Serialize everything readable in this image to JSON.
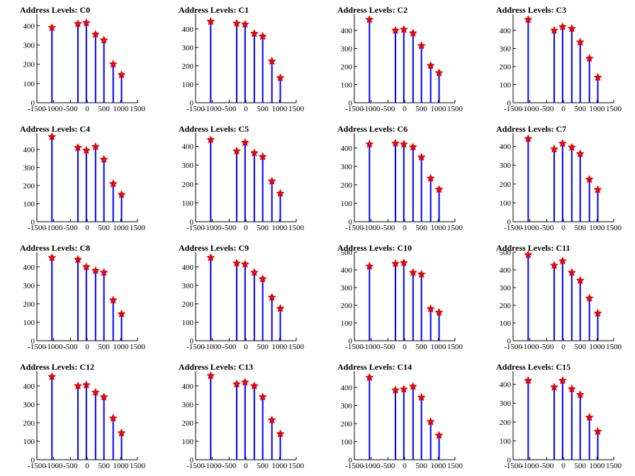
{
  "chart_data": [
    {
      "title": "Address Levels: C0",
      "type": "bar",
      "ylim": [
        0,
        460
      ],
      "yticks": [
        0,
        100,
        200,
        300,
        400
      ],
      "xlim": [
        -1500,
        1500
      ],
      "xtick_labels": [
        "-1500",
        "-1000",
        "-500",
        "0",
        "500",
        "1000",
        "1500"
      ],
      "markers": {
        "x": [
          -1050,
          -275,
          -25,
          250,
          500,
          775,
          1025
        ],
        "y": [
          390,
          410,
          415,
          355,
          325,
          200,
          145
        ]
      },
      "bars": {
        "x": [
          -1050,
          -275,
          -25,
          250,
          500,
          775,
          1025
        ],
        "y": [
          390,
          410,
          415,
          355,
          325,
          200,
          145
        ]
      }
    },
    {
      "title": "Address Levels: C1",
      "type": "bar",
      "ylim": [
        0,
        480
      ],
      "yticks": [
        0,
        100,
        200,
        300,
        400
      ],
      "xlim": [
        -1500,
        1500
      ],
      "xtick_labels": [
        "-1500",
        "-1000",
        "-500",
        "0",
        "500",
        "1000",
        "1500"
      ],
      "markers": {
        "x": [
          -1050,
          -275,
          -25,
          250,
          500,
          775,
          1025
        ],
        "y": [
          440,
          430,
          425,
          375,
          360,
          225,
          135
        ]
      },
      "bars": {
        "x": [
          -1050,
          -275,
          -25,
          250,
          500,
          775,
          1025
        ],
        "y": [
          440,
          430,
          425,
          375,
          360,
          225,
          135
        ]
      }
    },
    {
      "title": "Address Levels: C2",
      "type": "bar",
      "ylim": [
        0,
        490
      ],
      "yticks": [
        0,
        100,
        200,
        300,
        400
      ],
      "xlim": [
        -1500,
        1500
      ],
      "xtick_labels": [
        "-1500",
        "-1000",
        "-500",
        "0",
        "500",
        "1000",
        "1500"
      ],
      "markers": {
        "x": [
          -1050,
          -275,
          -25,
          250,
          500,
          775,
          1025
        ],
        "y": [
          460,
          400,
          405,
          385,
          315,
          205,
          165
        ]
      },
      "bars": {
        "x": [
          -1050,
          -275,
          -25,
          250,
          500,
          775,
          1025
        ],
        "y": [
          460,
          400,
          405,
          385,
          315,
          205,
          165
        ]
      }
    },
    {
      "title": "Address Levels: C3",
      "type": "bar",
      "ylim": [
        0,
        490
      ],
      "yticks": [
        0,
        100,
        200,
        300,
        400
      ],
      "xlim": [
        -1500,
        1500
      ],
      "xtick_labels": [
        "-1500",
        "-1000",
        "-500",
        "0",
        "500",
        "1000",
        "1500"
      ],
      "markers": {
        "x": [
          -1050,
          -275,
          -25,
          250,
          500,
          775,
          1025
        ],
        "y": [
          460,
          400,
          420,
          410,
          335,
          245,
          140
        ]
      },
      "bars": {
        "x": [
          -1050,
          -275,
          -25,
          250,
          500,
          775,
          1025
        ],
        "y": [
          460,
          400,
          420,
          410,
          335,
          245,
          140
        ]
      }
    },
    {
      "title": "Address Levels: C4",
      "type": "bar",
      "ylim": [
        0,
        490
      ],
      "yticks": [
        0,
        100,
        200,
        300,
        400
      ],
      "xlim": [
        -1500,
        1500
      ],
      "xtick_labels": [
        "-1500",
        "-1000",
        "-500",
        "0",
        "500",
        "1000",
        "1500"
      ],
      "markers": {
        "x": [
          -1050,
          -275,
          -25,
          250,
          500,
          775,
          1025
        ],
        "y": [
          470,
          410,
          395,
          415,
          345,
          210,
          150
        ]
      },
      "bars": {
        "x": [
          -1050,
          -275,
          -25,
          250,
          500,
          775,
          1025
        ],
        "y": [
          470,
          410,
          395,
          415,
          345,
          210,
          150
        ]
      }
    },
    {
      "title": "Address Levels: C5",
      "type": "bar",
      "ylim": [
        0,
        470
      ],
      "yticks": [
        0,
        100,
        200,
        300,
        400
      ],
      "xlim": [
        -1500,
        1500
      ],
      "xtick_labels": [
        "-1500",
        "-1000",
        "-500",
        "0",
        "500",
        "1000",
        "1500"
      ],
      "markers": {
        "x": [
          -1050,
          -275,
          -25,
          250,
          500,
          775,
          1025
        ],
        "y": [
          435,
          375,
          420,
          365,
          345,
          215,
          150
        ]
      },
      "bars": {
        "x": [
          -1050,
          -275,
          -25,
          250,
          500,
          775,
          1025
        ],
        "y": [
          435,
          375,
          420,
          365,
          345,
          215,
          150
        ]
      }
    },
    {
      "title": "Address Levels: C6",
      "type": "bar",
      "ylim": [
        0,
        480
      ],
      "yticks": [
        0,
        100,
        200,
        300,
        400
      ],
      "xlim": [
        -1500,
        1500
      ],
      "xtick_labels": [
        "-1500",
        "-1000",
        "-500",
        "0",
        "500",
        "1000",
        "1500"
      ],
      "markers": {
        "x": [
          -1050,
          -275,
          -25,
          250,
          500,
          775,
          1025
        ],
        "y": [
          420,
          425,
          420,
          405,
          350,
          235,
          175
        ]
      },
      "bars": {
        "x": [
          -1050,
          -275,
          -25,
          250,
          500,
          775,
          1025
        ],
        "y": [
          420,
          425,
          420,
          405,
          350,
          235,
          175
        ]
      }
    },
    {
      "title": "Address Levels: C7",
      "type": "bar",
      "ylim": [
        0,
        470
      ],
      "yticks": [
        0,
        100,
        200,
        300,
        400
      ],
      "xlim": [
        -1500,
        1500
      ],
      "xtick_labels": [
        "-1500",
        "-1000",
        "-500",
        "0",
        "500",
        "1000",
        "1500"
      ],
      "markers": {
        "x": [
          -1050,
          -275,
          -25,
          250,
          500,
          775,
          1025
        ],
        "y": [
          440,
          385,
          415,
          395,
          360,
          225,
          170
        ]
      },
      "bars": {
        "x": [
          -1050,
          -275,
          -25,
          250,
          500,
          775,
          1025
        ],
        "y": [
          440,
          385,
          415,
          395,
          360,
          225,
          170
        ]
      }
    },
    {
      "title": "Address Levels: C8",
      "type": "bar",
      "ylim": [
        0,
        480
      ],
      "yticks": [
        0,
        100,
        200,
        300,
        400
      ],
      "xlim": [
        -1500,
        1500
      ],
      "xtick_labels": [
        "-1500",
        "-1000",
        "-500",
        "0",
        "500",
        "1000",
        "1500"
      ],
      "markers": {
        "x": [
          -1050,
          -275,
          -25,
          250,
          500,
          775,
          1025
        ],
        "y": [
          450,
          440,
          400,
          380,
          370,
          220,
          145
        ]
      },
      "bars": {
        "x": [
          -1050,
          -275,
          -25,
          250,
          500,
          775,
          1025
        ],
        "y": [
          450,
          440,
          400,
          380,
          370,
          220,
          145
        ]
      }
    },
    {
      "title": "Address Levels: C9",
      "type": "bar",
      "ylim": [
        0,
        480
      ],
      "yticks": [
        0,
        100,
        200,
        300,
        400
      ],
      "xlim": [
        -1500,
        1500
      ],
      "xtick_labels": [
        "-1500",
        "-1000",
        "-500",
        "0",
        "500",
        "1000",
        "1500"
      ],
      "markers": {
        "x": [
          -1050,
          -275,
          -25,
          250,
          500,
          775,
          1025
        ],
        "y": [
          450,
          420,
          415,
          370,
          335,
          235,
          175
        ]
      },
      "bars": {
        "x": [
          -1050,
          -275,
          -25,
          250,
          500,
          775,
          1025
        ],
        "y": [
          450,
          420,
          415,
          370,
          335,
          235,
          175
        ]
      }
    },
    {
      "title": "Address Levels: C10",
      "type": "bar",
      "ylim": [
        0,
        500
      ],
      "yticks": [
        0,
        100,
        200,
        300,
        400,
        500
      ],
      "xlim": [
        -1500,
        1500
      ],
      "xtick_labels": [
        "-1500",
        "-1000",
        "-500",
        "0",
        "500",
        "1000",
        "1500"
      ],
      "markers": {
        "x": [
          -1050,
          -275,
          -25,
          250,
          500,
          775,
          1025
        ],
        "y": [
          420,
          435,
          440,
          385,
          375,
          180,
          160
        ]
      },
      "bars": {
        "x": [
          -1050,
          -275,
          -25,
          250,
          500,
          775,
          1025
        ],
        "y": [
          420,
          435,
          440,
          385,
          375,
          180,
          160
        ]
      }
    },
    {
      "title": "Address Levels: C11",
      "type": "bar",
      "ylim": [
        0,
        500
      ],
      "yticks": [
        0,
        100,
        200,
        300,
        400,
        500
      ],
      "xlim": [
        -1500,
        1500
      ],
      "xtick_labels": [
        "-1500",
        "-1000",
        "-500",
        "0",
        "500",
        "1000",
        "1500"
      ],
      "markers": {
        "x": [
          -1050,
          -275,
          -25,
          250,
          500,
          775,
          1025
        ],
        "y": [
          485,
          425,
          450,
          385,
          340,
          240,
          155
        ]
      },
      "bars": {
        "x": [
          -1050,
          -275,
          -25,
          250,
          500,
          775,
          1025
        ],
        "y": [
          485,
          425,
          450,
          385,
          340,
          240,
          155
        ]
      }
    },
    {
      "title": "Address Levels: C12",
      "type": "bar",
      "ylim": [
        0,
        480
      ],
      "yticks": [
        0,
        100,
        200,
        300,
        400
      ],
      "xlim": [
        -1500,
        1500
      ],
      "xtick_labels": [
        "-1500",
        "-1000",
        "-500",
        "0",
        "500",
        "1000",
        "1500"
      ],
      "markers": {
        "x": [
          -1050,
          -275,
          -25,
          250,
          500,
          775,
          1025
        ],
        "y": [
          450,
          400,
          405,
          365,
          340,
          225,
          145
        ]
      },
      "bars": {
        "x": [
          -1050,
          -275,
          -25,
          250,
          500,
          775,
          1025
        ],
        "y": [
          450,
          400,
          405,
          365,
          340,
          225,
          145
        ]
      }
    },
    {
      "title": "Address Levels: C13",
      "type": "bar",
      "ylim": [
        0,
        480
      ],
      "yticks": [
        0,
        100,
        200,
        300,
        400
      ],
      "xlim": [
        -1500,
        1500
      ],
      "xtick_labels": [
        "-1500",
        "-1000",
        "-500",
        "0",
        "500",
        "1000",
        "1500"
      ],
      "markers": {
        "x": [
          -1050,
          -275,
          -25,
          250,
          500,
          775,
          1025
        ],
        "y": [
          455,
          410,
          420,
          400,
          340,
          215,
          140
        ]
      },
      "bars": {
        "x": [
          -1050,
          -275,
          -25,
          250,
          500,
          775,
          1025
        ],
        "y": [
          455,
          410,
          420,
          400,
          340,
          215,
          140
        ]
      }
    },
    {
      "title": "Address Levels: C14",
      "type": "bar",
      "ylim": [
        0,
        490
      ],
      "yticks": [
        0,
        100,
        200,
        300,
        400
      ],
      "xlim": [
        -1500,
        1500
      ],
      "xtick_labels": [
        "-1500",
        "-1000",
        "-500",
        "0",
        "500",
        "1000",
        "1500"
      ],
      "markers": {
        "x": [
          -1050,
          -275,
          -25,
          250,
          500,
          775,
          1025
        ],
        "y": [
          455,
          385,
          390,
          405,
          345,
          210,
          135
        ]
      },
      "bars": {
        "x": [
          -1050,
          -275,
          -25,
          250,
          500,
          775,
          1025
        ],
        "y": [
          455,
          385,
          390,
          405,
          345,
          210,
          135
        ]
      }
    },
    {
      "title": "Address Levels: C15",
      "type": "bar",
      "ylim": [
        0,
        470
      ],
      "yticks": [
        0,
        100,
        200,
        300,
        400
      ],
      "xlim": [
        -1500,
        1500
      ],
      "xtick_labels": [
        "-1500",
        "-1000",
        "-500",
        "0",
        "500",
        "1000",
        "1500"
      ],
      "markers": {
        "x": [
          -1050,
          -275,
          -25,
          250,
          500,
          775,
          1025
        ],
        "y": [
          420,
          385,
          420,
          375,
          345,
          225,
          150
        ]
      },
      "bars": {
        "x": [
          -1050,
          -275,
          -25,
          250,
          500,
          775,
          1025
        ],
        "y": [
          420,
          385,
          420,
          375,
          345,
          225,
          150
        ]
      }
    }
  ],
  "style": {
    "bar_color": "#0000ff",
    "marker_color": "#ff0000",
    "axis_color": "#000000"
  }
}
